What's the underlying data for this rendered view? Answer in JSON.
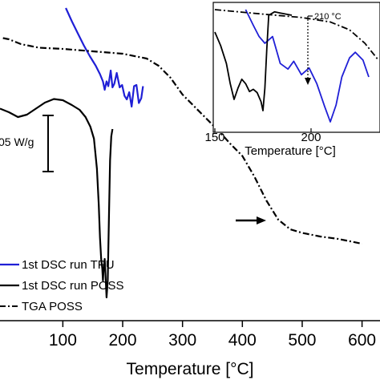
{
  "chart_data": {
    "type": "line",
    "xlabel": "Temperature [°C]",
    "x_ticks": [
      100,
      200,
      300,
      400,
      500,
      600
    ],
    "xlim": [
      -5,
      630
    ],
    "scale_bar_label": "05 W/g",
    "series": [
      {
        "name": "1st DSC run TPU",
        "color": "#1f1fd6",
        "style": "solid",
        "points": [
          [
            105,
            0.0
          ],
          [
            115,
            0.11
          ],
          [
            125,
            0.21
          ],
          [
            135,
            0.31
          ],
          [
            145,
            0.4
          ],
          [
            155,
            0.48
          ],
          [
            162,
            0.55
          ],
          [
            167,
            0.61
          ],
          [
            170,
            0.68
          ],
          [
            173,
            0.61
          ],
          [
            176,
            0.65
          ],
          [
            180,
            0.52
          ],
          [
            183,
            0.66
          ],
          [
            186,
            0.63
          ],
          [
            190,
            0.54
          ],
          [
            195,
            0.66
          ],
          [
            199,
            0.64
          ],
          [
            203,
            0.73
          ],
          [
            207,
            0.76
          ],
          [
            211,
            0.7
          ],
          [
            215,
            0.82
          ],
          [
            219,
            0.65
          ],
          [
            223,
            0.64
          ],
          [
            227,
            0.79
          ],
          [
            231,
            0.75
          ],
          [
            234,
            0.65
          ]
        ]
      },
      {
        "name": "1st DSC run POSS",
        "color": "#000000",
        "style": "solid",
        "points": [
          [
            -5,
            0.45
          ],
          [
            10,
            0.48
          ],
          [
            25,
            0.52
          ],
          [
            40,
            0.5
          ],
          [
            55,
            0.45
          ],
          [
            70,
            0.4
          ],
          [
            85,
            0.37
          ],
          [
            100,
            0.38
          ],
          [
            115,
            0.42
          ],
          [
            128,
            0.46
          ],
          [
            138,
            0.52
          ],
          [
            146,
            0.6
          ],
          [
            152,
            0.7
          ],
          [
            157,
            0.95
          ],
          [
            160,
            1.25
          ],
          [
            162,
            1.52
          ],
          [
            164,
            1.7
          ],
          [
            166,
            1.78
          ],
          [
            167,
            1.88
          ],
          [
            168,
            1.8
          ],
          [
            170,
            1.7
          ],
          [
            172,
            1.9
          ],
          [
            173,
            2.02
          ],
          [
            175,
            1.88
          ],
          [
            177,
            1.35
          ],
          [
            179,
            0.88
          ],
          [
            181,
            0.68
          ],
          [
            183,
            0.62
          ]
        ]
      },
      {
        "name": "TGA POSS",
        "color": "#000000",
        "style": "dashdot",
        "points": [
          [
            0,
            0.05
          ],
          [
            10,
            0.06
          ],
          [
            30,
            0.1
          ],
          [
            60,
            0.13
          ],
          [
            100,
            0.14
          ],
          [
            150,
            0.16
          ],
          [
            200,
            0.18
          ],
          [
            240,
            0.22
          ],
          [
            260,
            0.28
          ],
          [
            280,
            0.38
          ],
          [
            300,
            0.52
          ],
          [
            320,
            0.62
          ],
          [
            340,
            0.72
          ],
          [
            360,
            0.82
          ],
          [
            380,
            0.93
          ],
          [
            400,
            1.03
          ],
          [
            420,
            1.2
          ],
          [
            440,
            1.4
          ],
          [
            460,
            1.56
          ],
          [
            480,
            1.64
          ],
          [
            500,
            1.67
          ],
          [
            530,
            1.7
          ],
          [
            560,
            1.72
          ],
          [
            580,
            1.74
          ],
          [
            600,
            1.76
          ]
        ]
      }
    ],
    "inset": {
      "xlabel": "Temperature [°C]",
      "x_ticks": [
        150,
        200
      ],
      "xlim": [
        150,
        235
      ],
      "annotation": "210 °C",
      "series": [
        {
          "name": "1st DSC run TPU",
          "color": "#1f1fd6",
          "style": "solid",
          "points": [
            [
              166,
              0.0
            ],
            [
              170,
              0.14
            ],
            [
              173,
              0.24
            ],
            [
              176,
              0.3
            ],
            [
              180,
              0.24
            ],
            [
              184,
              0.48
            ],
            [
              188,
              0.53
            ],
            [
              191,
              0.46
            ],
            [
              195,
              0.58
            ],
            [
              199,
              0.52
            ],
            [
              203,
              0.66
            ],
            [
              207,
              0.86
            ],
            [
              210,
              1.0
            ],
            [
              213,
              0.85
            ],
            [
              216,
              0.6
            ],
            [
              220,
              0.43
            ],
            [
              223,
              0.38
            ],
            [
              227,
              0.45
            ],
            [
              230,
              0.6
            ]
          ]
        },
        {
          "name": "1st DSC run POSS",
          "color": "#000000",
          "style": "solid",
          "points": [
            [
              150,
              0.2
            ],
            [
              153,
              0.32
            ],
            [
              156,
              0.48
            ],
            [
              158,
              0.66
            ],
            [
              160,
              0.8
            ],
            [
              162,
              0.7
            ],
            [
              164,
              0.62
            ],
            [
              166,
              0.66
            ],
            [
              168,
              0.73
            ],
            [
              170,
              0.71
            ],
            [
              172,
              0.74
            ],
            [
              174,
              0.82
            ],
            [
              175,
              0.9
            ],
            [
              176,
              0.7
            ],
            [
              177,
              0.35
            ],
            [
              178,
              0.05
            ],
            [
              181,
              0.02
            ],
            [
              184,
              0.03
            ],
            [
              187,
              0.04
            ],
            [
              190,
              0.05
            ]
          ]
        },
        {
          "name": "TGA POSS",
          "color": "#000000",
          "style": "dashdot",
          "points": [
            [
              150,
              0.0
            ],
            [
              175,
              0.04
            ],
            [
              195,
              0.07
            ],
            [
              210,
              0.11
            ],
            [
              220,
              0.18
            ],
            [
              228,
              0.3
            ],
            [
              235,
              0.45
            ]
          ]
        }
      ]
    }
  }
}
